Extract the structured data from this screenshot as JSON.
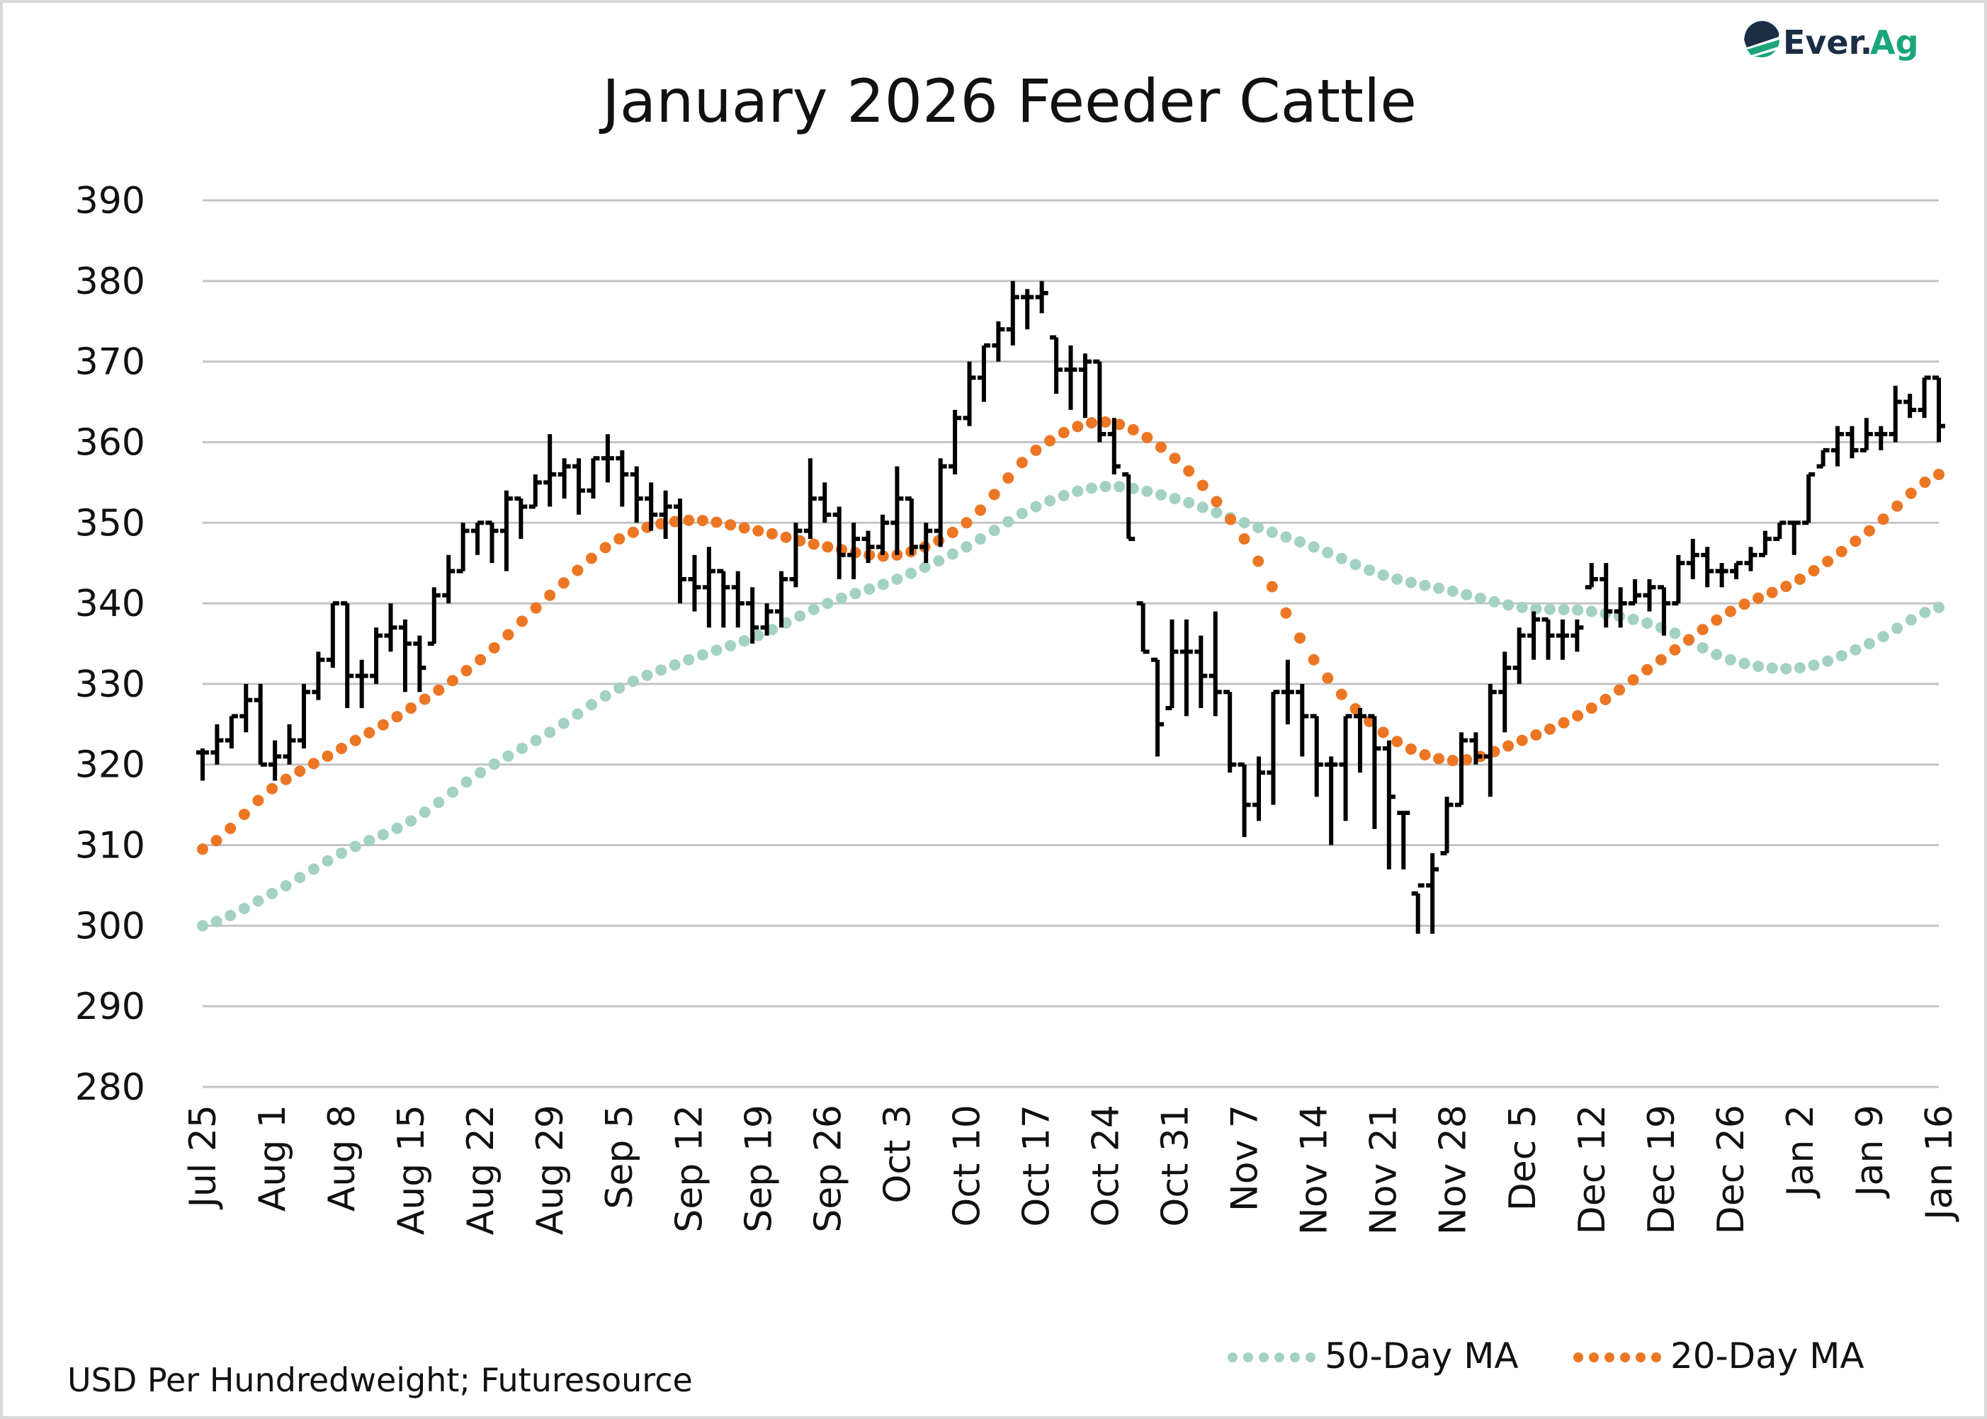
{
  "logo": {
    "text_dark": "Ever.",
    "text_green": "Ag",
    "colors": {
      "dark": "#1c2e44",
      "green": "#1aa57a"
    }
  },
  "chart_data": {
    "type": "ohlc-bar with moving-average lines",
    "title": "January 2026 Feeder Cattle",
    "source_note": "USD Per Hundredweight; Futuresource",
    "ylim": [
      280,
      390
    ],
    "yticks": [
      280,
      290,
      300,
      310,
      320,
      330,
      340,
      350,
      360,
      370,
      380,
      390
    ],
    "grid": "horizontal",
    "legend_position": "bottom-right",
    "xtick_labels": [
      "Jul 25",
      "Aug 1",
      "Aug 8",
      "Aug 15",
      "Aug 22",
      "Aug 29",
      "Sep 5",
      "Sep 12",
      "Sep 19",
      "Sep 26",
      "Oct 3",
      "Oct 10",
      "Oct 17",
      "Oct 24",
      "Oct 31",
      "Nov 7",
      "Nov 14",
      "Nov 21",
      "Nov 28",
      "Dec 5",
      "Dec 12",
      "Dec 19",
      "Dec 26",
      "Jan 2",
      "Jan 9",
      "Jan 16"
    ],
    "price_bars_hlc": [
      [
        322,
        318,
        321.5
      ],
      [
        325,
        320,
        323
      ],
      [
        326,
        322,
        326
      ],
      [
        330,
        324,
        328
      ],
      [
        330,
        320,
        320
      ],
      [
        323,
        318,
        321
      ],
      [
        325,
        320,
        323
      ],
      [
        330,
        322,
        329
      ],
      [
        334,
        328,
        333
      ],
      [
        340,
        332,
        340
      ],
      [
        340,
        327,
        331
      ],
      [
        333,
        327,
        331
      ],
      [
        337,
        330,
        336
      ],
      [
        340,
        334,
        337
      ],
      [
        338,
        329,
        335
      ],
      [
        336,
        329,
        332
      ],
      [
        342,
        335,
        341
      ],
      [
        346,
        340,
        344
      ],
      [
        350,
        344,
        349
      ],
      [
        350,
        346,
        350
      ],
      [
        350,
        345,
        349
      ],
      [
        354,
        344,
        353
      ],
      [
        353,
        348,
        352
      ],
      [
        356,
        352,
        355
      ],
      [
        361,
        352,
        356
      ],
      [
        358,
        353,
        357
      ],
      [
        358,
        351,
        354
      ],
      [
        358,
        353,
        358
      ],
      [
        361,
        355,
        358
      ],
      [
        359,
        352,
        356
      ],
      [
        357,
        350,
        353
      ],
      [
        355,
        349,
        351
      ],
      [
        354,
        348,
        352
      ],
      [
        353,
        340,
        343
      ],
      [
        346,
        339,
        342
      ],
      [
        347,
        337,
        344
      ],
      [
        344,
        337,
        342
      ],
      [
        344,
        337,
        340
      ],
      [
        342,
        335,
        337
      ],
      [
        340,
        336,
        339
      ],
      [
        344,
        337,
        343
      ],
      [
        350,
        342,
        349
      ],
      [
        358,
        348,
        353
      ],
      [
        355,
        350,
        351
      ],
      [
        352,
        343,
        346
      ],
      [
        350,
        343,
        348
      ],
      [
        349,
        345,
        347
      ],
      [
        351,
        346,
        350
      ],
      [
        357,
        346,
        353
      ],
      [
        353,
        346,
        347
      ],
      [
        350,
        345,
        349
      ],
      [
        358,
        347,
        357
      ],
      [
        364,
        356,
        363
      ],
      [
        370,
        362,
        368
      ],
      [
        372,
        365,
        372
      ],
      [
        375,
        370,
        374
      ],
      [
        380,
        372,
        378
      ],
      [
        379,
        374,
        378
      ],
      [
        380,
        376,
        378.5
      ],
      [
        373,
        366,
        369
      ],
      [
        372,
        364,
        369
      ],
      [
        371,
        363,
        370
      ],
      [
        370,
        360,
        361
      ],
      [
        363,
        356,
        357
      ],
      [
        356,
        348,
        348
      ],
      [
        340,
        334,
        334
      ],
      [
        333,
        321,
        325
      ],
      [
        338,
        327,
        334
      ],
      [
        338,
        326,
        334
      ],
      [
        336,
        327,
        331
      ],
      [
        339,
        326,
        329
      ],
      [
        329,
        319,
        320
      ],
      [
        320,
        311,
        315
      ],
      [
        321,
        313,
        319
      ],
      [
        329,
        315,
        329
      ],
      [
        333,
        325,
        329
      ],
      [
        330,
        321,
        326
      ],
      [
        326,
        316,
        320
      ],
      [
        321,
        310,
        320
      ],
      [
        326,
        313,
        326
      ],
      [
        327,
        319,
        326
      ],
      [
        326,
        312,
        322
      ],
      [
        323,
        307,
        316
      ],
      [
        314,
        307,
        314
      ],
      [
        304,
        299,
        305
      ],
      [
        309,
        299,
        307
      ],
      [
        316,
        309,
        315
      ],
      [
        324,
        315,
        323
      ],
      [
        324,
        320,
        321
      ],
      [
        330,
        316,
        329
      ],
      [
        334,
        324,
        332
      ],
      [
        337,
        330,
        336
      ],
      [
        339,
        333,
        338
      ],
      [
        338,
        333,
        336
      ],
      [
        338,
        333,
        336
      ],
      [
        338,
        334,
        337
      ],
      [
        345,
        342,
        343
      ],
      [
        345,
        337,
        339
      ],
      [
        342,
        337,
        340
      ],
      [
        343,
        340,
        341
      ],
      [
        343,
        339,
        342
      ],
      [
        342,
        336,
        340
      ],
      [
        346,
        340,
        345
      ],
      [
        348,
        343,
        346
      ],
      [
        347,
        342,
        344
      ],
      [
        345,
        342,
        344
      ],
      [
        345,
        343,
        345
      ],
      [
        347,
        344,
        346
      ],
      [
        349,
        346,
        348
      ],
      [
        350,
        348,
        350
      ],
      [
        350,
        346,
        350
      ],
      [
        356,
        350,
        356
      ],
      [
        359,
        357,
        359
      ],
      [
        362,
        357,
        361
      ],
      [
        362,
        358,
        359
      ],
      [
        363,
        359,
        361
      ],
      [
        362,
        359,
        361
      ],
      [
        367,
        360,
        365
      ],
      [
        366,
        363,
        364
      ],
      [
        368,
        363,
        368
      ],
      [
        368,
        360,
        362
      ]
    ],
    "series": [
      {
        "name": "50-Day MA",
        "color": "#a3d1c3",
        "weekly_values": [
          300,
          304,
          309,
          313,
          319,
          324,
          329.5,
          333,
          336,
          340,
          343,
          347,
          352,
          354.5,
          353,
          350,
          347,
          343.5,
          341.5,
          339.5,
          339,
          337,
          333,
          332,
          335,
          339.5
        ]
      },
      {
        "name": "20-Day MA",
        "color": "#ec7623",
        "weekly_values": [
          309.5,
          317,
          322,
          327,
          333,
          341,
          348,
          350.3,
          349,
          347,
          346,
          350,
          359,
          362.5,
          358,
          348,
          333,
          324,
          320.5,
          323,
          327,
          333,
          339,
          343,
          349,
          356
        ]
      }
    ],
    "bar_color": "#000000",
    "grid_color": "#c4c4c4"
  }
}
